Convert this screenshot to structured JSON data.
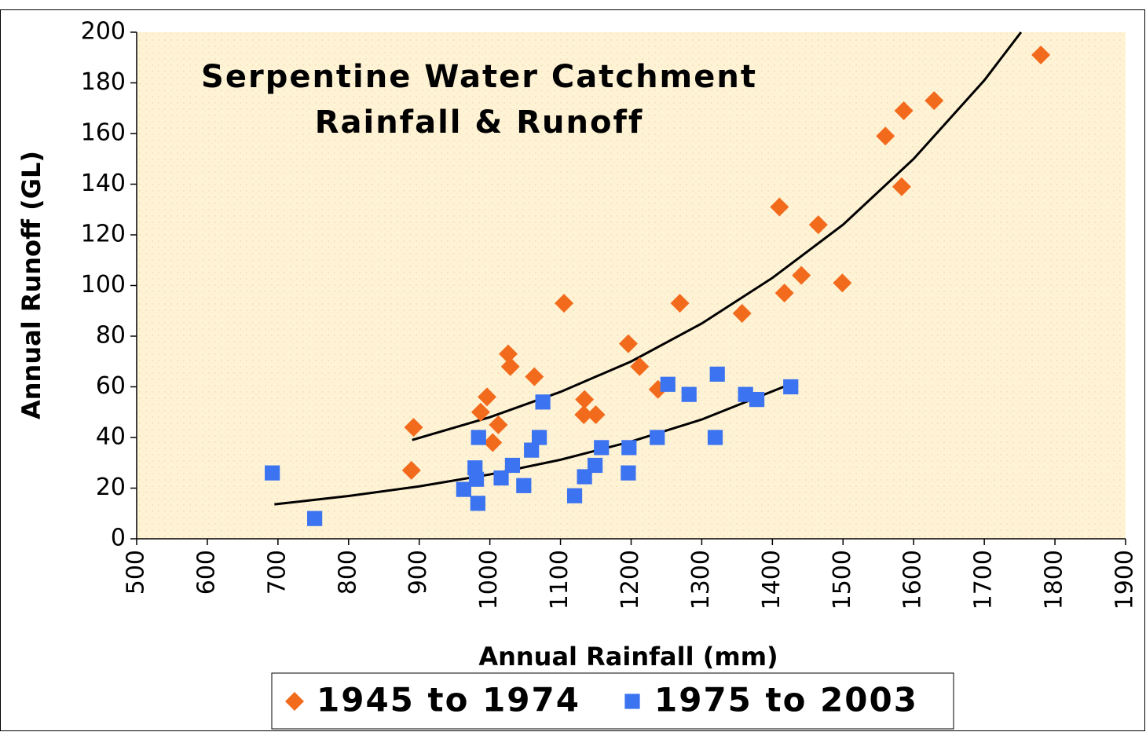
{
  "chart_data": {
    "type": "scatter",
    "title_lines": [
      "Serpentine Water Catchment",
      "Rainfall & Runoff"
    ],
    "x_label": "Annual Rainfall (mm)",
    "y_label": "Annual Runoff (GL)",
    "xlim": [
      500,
      1900
    ],
    "xticks": [
      500,
      600,
      700,
      800,
      900,
      1000,
      1100,
      1200,
      1300,
      1400,
      1500,
      1600,
      1700,
      1800,
      1900
    ],
    "ylim": [
      0,
      200
    ],
    "yticks": [
      0,
      20,
      40,
      60,
      80,
      100,
      120,
      140,
      160,
      180,
      200
    ],
    "grid": false,
    "legend": "bottom",
    "series": [
      {
        "name": "1945 to 1974",
        "color": "#F26B1D",
        "marker": "diamond",
        "x": [
          892,
          889,
          987,
          996,
          1004,
          1012,
          1026,
          1029,
          1063,
          1105,
          1134,
          1133,
          1150,
          1196,
          1212,
          1238,
          1269,
          1357,
          1410,
          1417,
          1441,
          1465,
          1499,
          1560,
          1583,
          1586,
          1629,
          1780
        ],
        "values": [
          44,
          27,
          50,
          56,
          38,
          45,
          73,
          68,
          64,
          93,
          55,
          49,
          49,
          77,
          68,
          59,
          93,
          89,
          131,
          97,
          104,
          124,
          101,
          159,
          139,
          169,
          173,
          191
        ],
        "trend": {
          "x": [
            890,
            1000,
            1100,
            1200,
            1300,
            1400,
            1500,
            1600,
            1700,
            1752
          ],
          "values": [
            39,
            48,
            58,
            70,
            85,
            103,
            124,
            150,
            181,
            200
          ]
        }
      },
      {
        "name": "1975 to 2003",
        "color": "#3B73F0",
        "marker": "square",
        "x": [
          692,
          752,
          963,
          979,
          981,
          983,
          984,
          1016,
          1032,
          1048,
          1059,
          1070,
          1075,
          1120,
          1134,
          1149,
          1158,
          1197,
          1196,
          1237,
          1252,
          1282,
          1319,
          1322,
          1362,
          1378,
          1426
        ],
        "values": [
          26,
          8,
          19.5,
          28,
          23.5,
          14,
          40,
          24,
          29,
          21,
          35,
          40,
          54,
          17,
          24.5,
          29,
          36,
          36,
          26,
          40,
          61,
          57,
          40,
          65,
          57,
          55,
          60
        ],
        "trend": {
          "x": [
            695,
            800,
            900,
            1000,
            1100,
            1200,
            1300,
            1425
          ],
          "values": [
            13.6,
            16.9,
            20.7,
            25.4,
            31.2,
            38.4,
            47.1,
            61
          ]
        }
      }
    ]
  }
}
